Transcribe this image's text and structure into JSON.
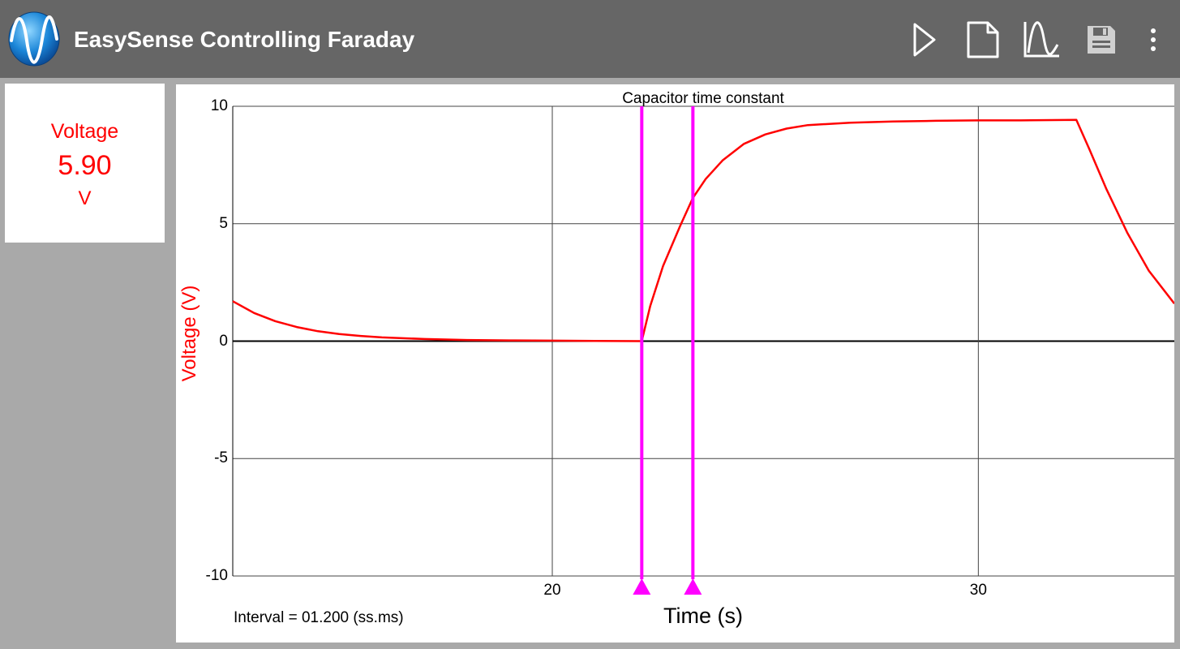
{
  "app": {
    "title": "EasySense Controlling Faraday",
    "logo_icon": "sine-wave-logo-icon"
  },
  "toolbar": {
    "items": [
      {
        "name": "play-icon"
      },
      {
        "name": "new-file-icon"
      },
      {
        "name": "graph-icon"
      },
      {
        "name": "save-icon"
      },
      {
        "name": "overflow-menu-icon"
      }
    ]
  },
  "meter": {
    "label": "Voltage",
    "value": "5.90",
    "unit": "V"
  },
  "status": {
    "interval": "Interval = 01.200 (ss.ms)"
  },
  "colors": {
    "appbar": "#666666",
    "background": "#a9a9a9",
    "trace": "#ff0000",
    "cursor": "#ff00ff"
  },
  "chart_data": {
    "type": "line",
    "title": "Capacitor time constant",
    "xlabel": "Time (s)",
    "ylabel": "Voltage (V)",
    "xlim": [
      12.5,
      34.6
    ],
    "ylim": [
      -10,
      10
    ],
    "x_ticks": [
      20,
      30
    ],
    "y_ticks": [
      10,
      5,
      0,
      -5,
      -10
    ],
    "grid": true,
    "cursors": [
      22.1,
      23.3
    ],
    "series": [
      {
        "x": [
          12.5,
          13.0,
          13.5,
          14.0,
          14.5,
          15.0,
          15.5,
          16.0,
          17.0,
          18.0,
          19.0,
          20.0,
          21.0,
          22.1,
          22.3,
          22.6,
          23.0,
          23.3,
          23.6,
          24.0,
          24.5,
          25.0,
          25.5,
          26.0,
          27.0,
          28.0,
          29.0,
          30.0,
          31.0,
          32.3,
          32.6,
          33.0,
          33.5,
          34.0,
          34.6
        ],
        "y": [
          1.7,
          1.2,
          0.85,
          0.6,
          0.42,
          0.3,
          0.22,
          0.16,
          0.09,
          0.05,
          0.03,
          0.02,
          0.01,
          0.0,
          1.5,
          3.2,
          4.9,
          6.1,
          6.9,
          7.7,
          8.4,
          8.8,
          9.05,
          9.2,
          9.3,
          9.35,
          9.38,
          9.4,
          9.4,
          9.42,
          8.2,
          6.5,
          4.6,
          3.0,
          1.6
        ]
      }
    ]
  }
}
